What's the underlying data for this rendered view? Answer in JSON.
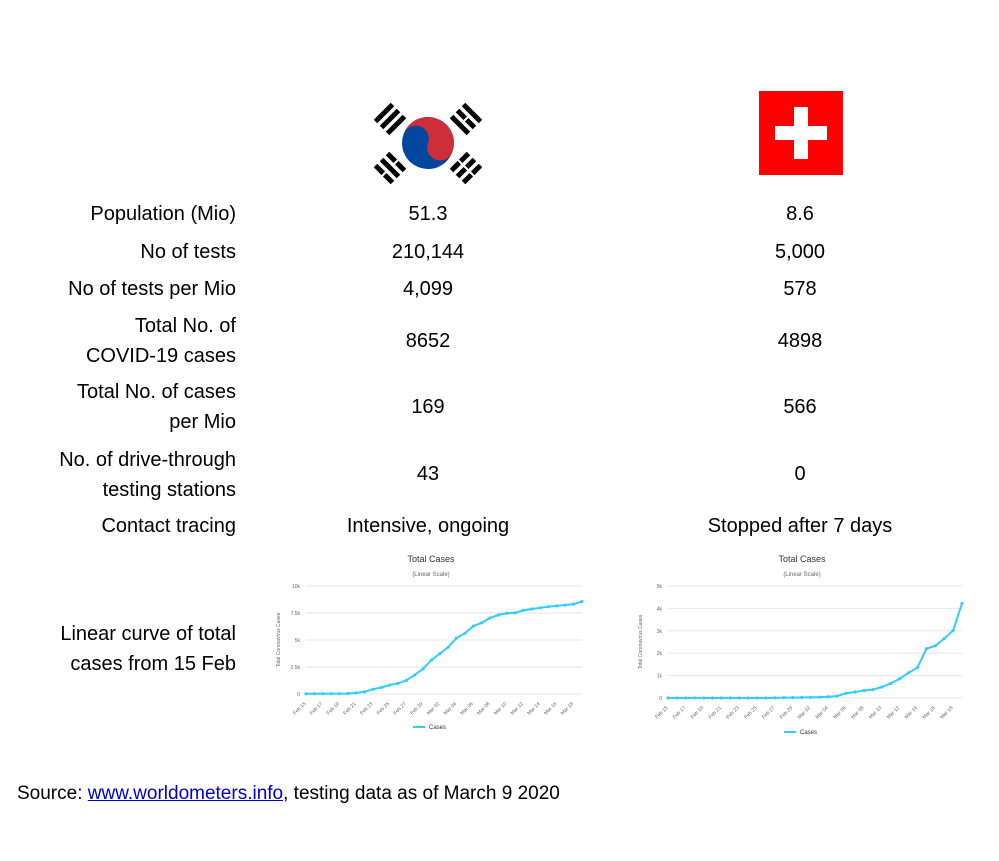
{
  "table": {
    "rows": [
      {
        "label": "Population (Mio)",
        "korea": "51.3",
        "switzerland": "8.6"
      },
      {
        "label": "No of tests",
        "korea": "210,144",
        "switzerland": "5,000"
      },
      {
        "label": "No of tests per Mio",
        "korea": "4,099",
        "switzerland": "578"
      },
      {
        "label_line1": "Total No. of",
        "label_line2": "COVID-19 cases",
        "korea": "8652",
        "switzerland": "4898"
      },
      {
        "label_line1": "Total No. of cases",
        "label_line2": "per Mio",
        "korea": "169",
        "switzerland": "566"
      },
      {
        "label_line1": "No. of drive-through",
        "label_line2": "testing stations",
        "korea": "43",
        "switzerland": "0"
      },
      {
        "label": "Contact tracing",
        "korea": "Intensive, ongoing",
        "switzerland": "Stopped after 7 days"
      },
      {
        "label_line1": "Linear curve of total",
        "label_line2": "cases from 15 Feb"
      }
    ]
  },
  "flags": {
    "korea": {
      "icon": "south-korea-flag-icon",
      "red": "#cd2e3a",
      "blue": "#0047a0",
      "black": "#000000"
    },
    "switzerland": {
      "icon": "switzerland-flag-icon",
      "red": "#ff0000",
      "white": "#ffffff"
    }
  },
  "source": {
    "prefix": "Source: ",
    "link_text": "www.worldometers.info",
    "suffix": ", testing data as of March 9 2020"
  },
  "chart_data": [
    {
      "type": "line",
      "title": "Total Cases",
      "subtitle": "(Linear Scale)",
      "ylabel": "Total Coronavirus Cases",
      "y_ticks": [
        "0",
        "2.5k",
        "5k",
        "7.5k",
        "10k"
      ],
      "ylim": [
        0,
        10000
      ],
      "x_ticks": [
        "Feb 15",
        "Feb 17",
        "Feb 19",
        "Feb 21",
        "Feb 23",
        "Feb 25",
        "Feb 27",
        "Feb 29",
        "Mar 02",
        "Mar 04",
        "Mar 06",
        "Mar 08",
        "Mar 10",
        "Mar 12",
        "Mar 14",
        "Mar 16",
        "Mar 18"
      ],
      "legend": "Cases",
      "color": "#33ccff",
      "x": [
        "Feb 15",
        "Feb 16",
        "Feb 17",
        "Feb 18",
        "Feb 19",
        "Feb 20",
        "Feb 21",
        "Feb 22",
        "Feb 23",
        "Feb 24",
        "Feb 25",
        "Feb 26",
        "Feb 27",
        "Feb 28",
        "Feb 29",
        "Mar 01",
        "Mar 02",
        "Mar 03",
        "Mar 04",
        "Mar 05",
        "Mar 06",
        "Mar 07",
        "Mar 08",
        "Mar 09",
        "Mar 10",
        "Mar 11",
        "Mar 12",
        "Mar 13",
        "Mar 14",
        "Mar 15",
        "Mar 16",
        "Mar 17",
        "Mar 18",
        "Mar 19"
      ],
      "values": [
        28,
        28,
        29,
        30,
        31,
        51,
        104,
        204,
        433,
        602,
        833,
        977,
        1261,
        1766,
        2337,
        3150,
        3736,
        4335,
        5186,
        5621,
        6284,
        6593,
        7041,
        7313,
        7478,
        7513,
        7755,
        7869,
        7979,
        8086,
        8162,
        8236,
        8320,
        8565
      ]
    },
    {
      "type": "line",
      "title": "Total Cases",
      "subtitle": "(Linear Scale)",
      "ylabel": "Total Coronavirus Cases",
      "y_ticks": [
        "0",
        "1k",
        "2k",
        "3k",
        "4k",
        "5k"
      ],
      "ylim": [
        0,
        5000
      ],
      "x_ticks": [
        "Feb 15",
        "Feb 17",
        "Feb 19",
        "Feb 21",
        "Feb 23",
        "Feb 25",
        "Feb 27",
        "Feb 29",
        "Mar 02",
        "Mar 04",
        "Mar 06",
        "Mar 08",
        "Mar 10",
        "Mar 12",
        "Mar 14",
        "Mar 16",
        "Mar 18"
      ],
      "legend": "Cases",
      "color": "#33ccff",
      "x": [
        "Feb 15",
        "Feb 16",
        "Feb 17",
        "Feb 18",
        "Feb 19",
        "Feb 20",
        "Feb 21",
        "Feb 22",
        "Feb 23",
        "Feb 24",
        "Feb 25",
        "Feb 26",
        "Feb 27",
        "Feb 28",
        "Feb 29",
        "Mar 01",
        "Mar 02",
        "Mar 03",
        "Mar 04",
        "Mar 05",
        "Mar 06",
        "Mar 07",
        "Mar 08",
        "Mar 09",
        "Mar 10",
        "Mar 11",
        "Mar 12",
        "Mar 13",
        "Mar 14",
        "Mar 15",
        "Mar 16",
        "Mar 17",
        "Mar 18",
        "Mar 19"
      ],
      "values": [
        0,
        0,
        0,
        0,
        0,
        0,
        0,
        0,
        0,
        0,
        1,
        1,
        8,
        15,
        18,
        24,
        30,
        37,
        56,
        87,
        214,
        268,
        337,
        374,
        491,
        645,
        858,
        1125,
        1359,
        2200,
        2330,
        2650,
        3010,
        4222
      ]
    }
  ]
}
